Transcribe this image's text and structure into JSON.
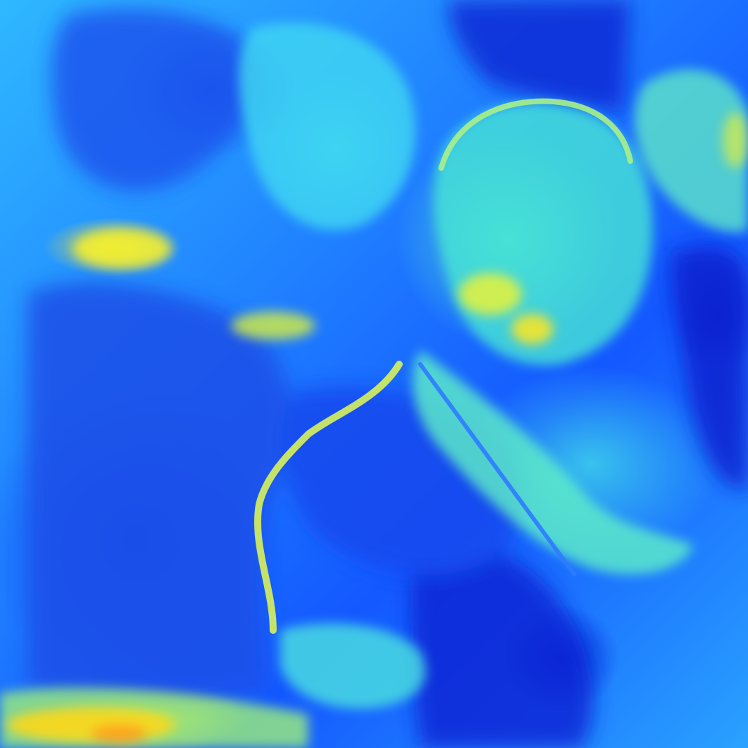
{
  "image": {
    "kind": "heatmap-overlay",
    "colormap": "jet",
    "colors": {
      "low": "#0010d8",
      "mid_low": "#1a6cff",
      "mid": "#22d8ff",
      "mid_high": "#7cf0b0",
      "high": "#f5f020",
      "peak": "#ff8c1a"
    }
  }
}
